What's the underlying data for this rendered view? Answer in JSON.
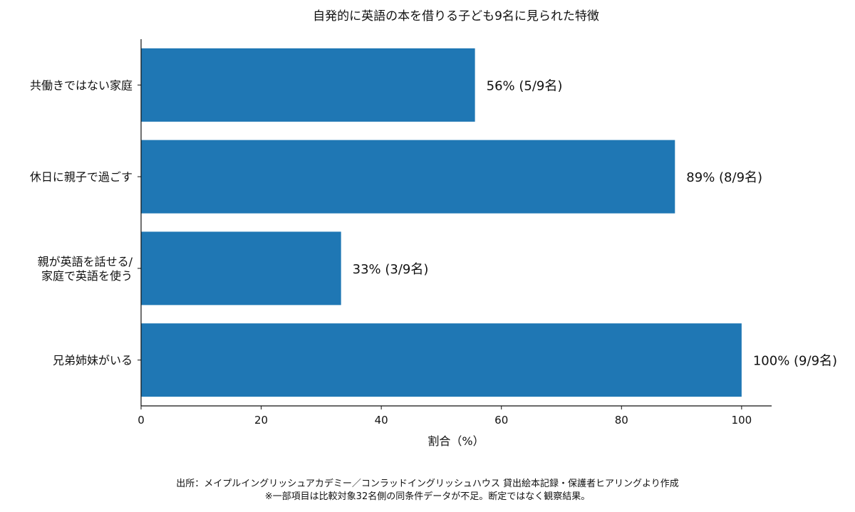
{
  "chart_data": {
    "type": "bar",
    "orientation": "horizontal",
    "title": "自発的に英語の本を借りる子ども9名に見られた特徴",
    "xlabel": "割合（%）",
    "ylabel": "",
    "xlim": [
      0,
      105
    ],
    "xticks": [
      0,
      20,
      40,
      60,
      80,
      100
    ],
    "categories": [
      [
        "共働きではない家庭"
      ],
      [
        "休日に親子で過ごす"
      ],
      [
        "親が英語を話せる/",
        "家庭で英語を使う"
      ],
      [
        "兄弟姉妹がいる"
      ]
    ],
    "values": [
      55.6,
      88.9,
      33.3,
      100
    ],
    "data_labels": [
      "56% (5/9名)",
      "89% (8/9名)",
      "33% (3/9名)",
      "100% (9/9名)"
    ],
    "bar_color": "#1f77b4",
    "grid": false,
    "legend": "none"
  },
  "footer": {
    "source": "出所：メイプルイングリッシュアカデミー／コンラッドイングリッシュハウス 貸出絵本記録・保護者ヒアリングより作成",
    "note": "※一部項目は比較対象32名側の同条件データが不足。断定ではなく観察結果。"
  }
}
